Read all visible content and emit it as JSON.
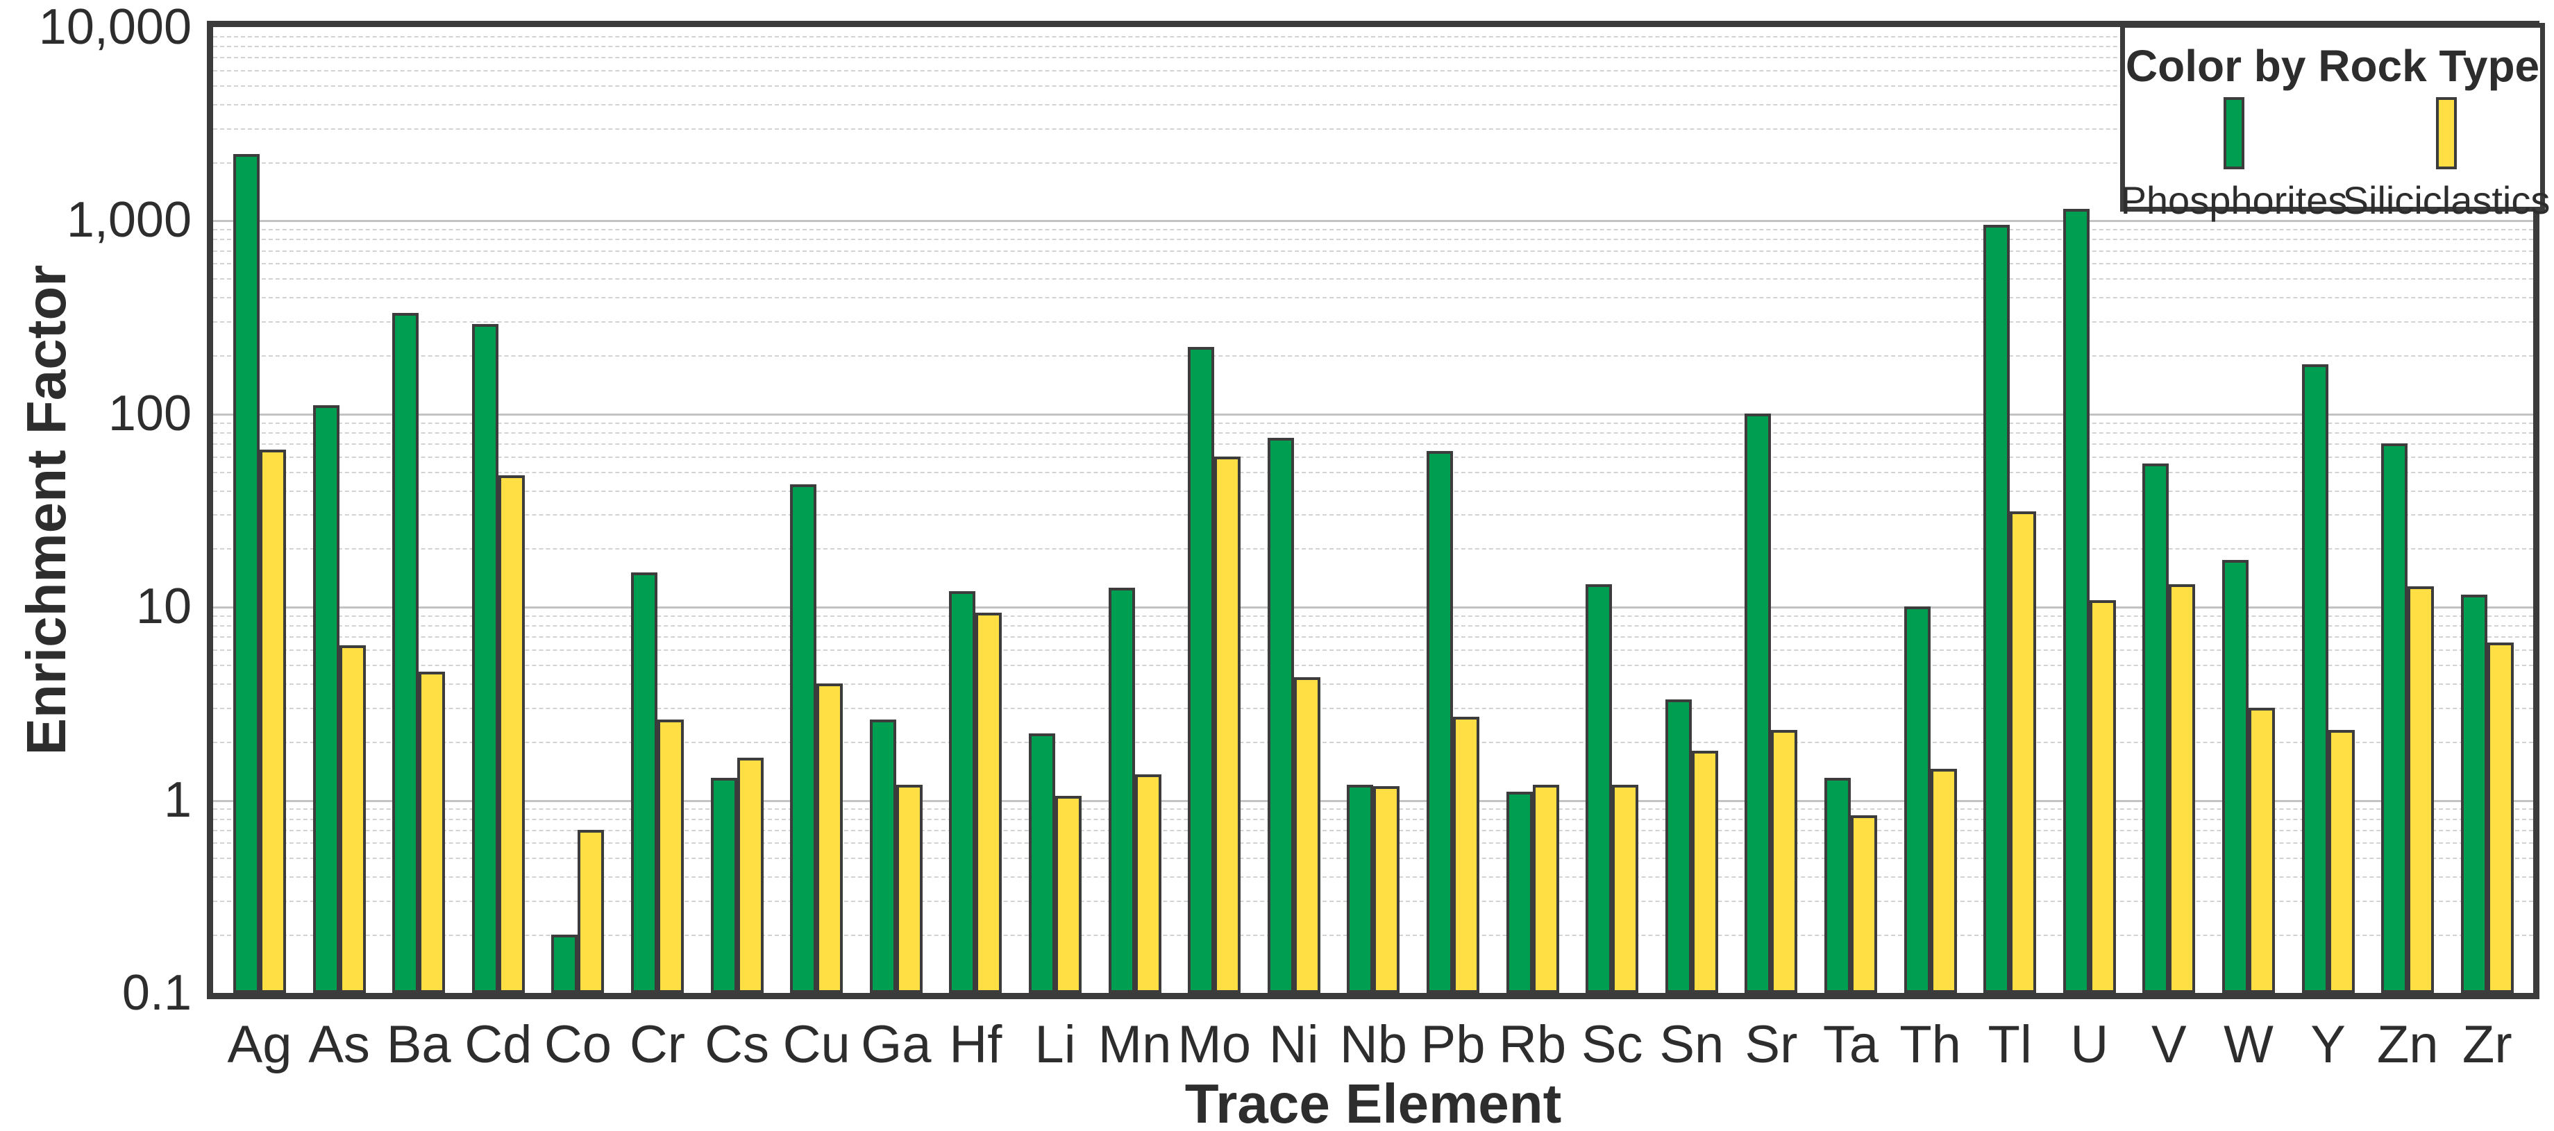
{
  "chart_data": {
    "type": "bar",
    "title": "",
    "xlabel": "Trace Element",
    "ylabel": "Enrichment Factor",
    "y_scale": "log",
    "ylim": [
      0.1,
      10000
    ],
    "y_ticks": [
      {
        "label": "10,000",
        "value": 10000
      },
      {
        "label": "1,000",
        "value": 1000
      },
      {
        "label": "100",
        "value": 100
      },
      {
        "label": "10",
        "value": 10
      },
      {
        "label": "1",
        "value": 1
      },
      {
        "label": "0.1",
        "value": 0.1
      }
    ],
    "grid": {
      "major": "solid",
      "minor": "dashed"
    },
    "categories": [
      "Ag",
      "As",
      "Ba",
      "Cd",
      "Co",
      "Cr",
      "Cs",
      "Cu",
      "Ga",
      "Hf",
      "Li",
      "Mn",
      "Mo",
      "Ni",
      "Nb",
      "Pb",
      "Rb",
      "Sc",
      "Sn",
      "Sr",
      "Ta",
      "Th",
      "Tl",
      "U",
      "V",
      "W",
      "Y",
      "Zn",
      "Zr"
    ],
    "series": [
      {
        "name": "Phosphorites",
        "color": "#009E50",
        "values": [
          2200,
          110,
          330,
          290,
          0.2,
          15,
          1.3,
          43,
          2.6,
          12,
          2.2,
          12.5,
          220,
          75,
          1.2,
          64,
          1.1,
          13,
          3.3,
          100,
          1.3,
          10,
          950,
          1150,
          55,
          17.5,
          180,
          70,
          11.5
        ]
      },
      {
        "name": "Siliciclastics",
        "color": "#FFDF43",
        "values": [
          65,
          6.3,
          4.6,
          48,
          0.7,
          2.6,
          1.65,
          4.0,
          1.2,
          9.3,
          1.05,
          1.35,
          60,
          4.3,
          1.18,
          2.7,
          1.2,
          1.2,
          1.8,
          2.3,
          0.83,
          1.45,
          31,
          10.8,
          13,
          3.0,
          2.3,
          12.7,
          6.5
        ]
      }
    ],
    "legend": {
      "title": "Color by Rock Type",
      "position": "top-right"
    }
  },
  "layout_text": {
    "xlabel": "Trace Element",
    "ylabel": "Enrichment Factor",
    "legend_title": "Color by Rock Type",
    "legend_phosphorites": "Phosphorites",
    "legend_siliciclastics": "Siliciclastics"
  }
}
